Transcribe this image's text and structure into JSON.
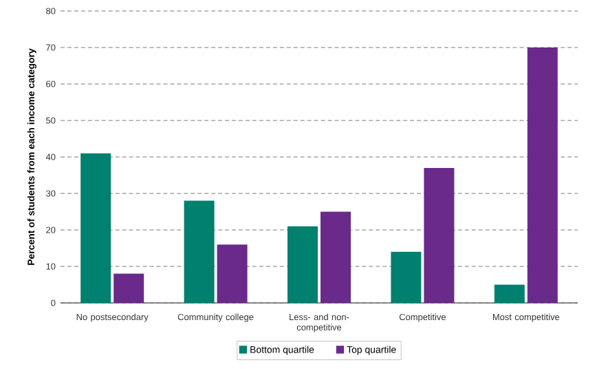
{
  "chart_data": {
    "type": "bar",
    "ylabel": "Percent of students from each income category",
    "categories": [
      "No postsecondary",
      "Community college",
      "Less- and non-competitive",
      "Competitive",
      "Most competitive"
    ],
    "series": [
      {
        "name": "Bottom quartile",
        "color": "#00806e",
        "values": [
          41,
          28,
          21,
          14,
          5
        ]
      },
      {
        "name": "Top quartile",
        "color": "#6a2a8a",
        "values": [
          8,
          16,
          25,
          37,
          70
        ]
      }
    ],
    "ylim": [
      0,
      80
    ],
    "yticks": [
      0,
      10,
      20,
      30,
      40,
      50,
      60,
      70,
      80
    ],
    "grid": "y",
    "legend": "bottom"
  }
}
